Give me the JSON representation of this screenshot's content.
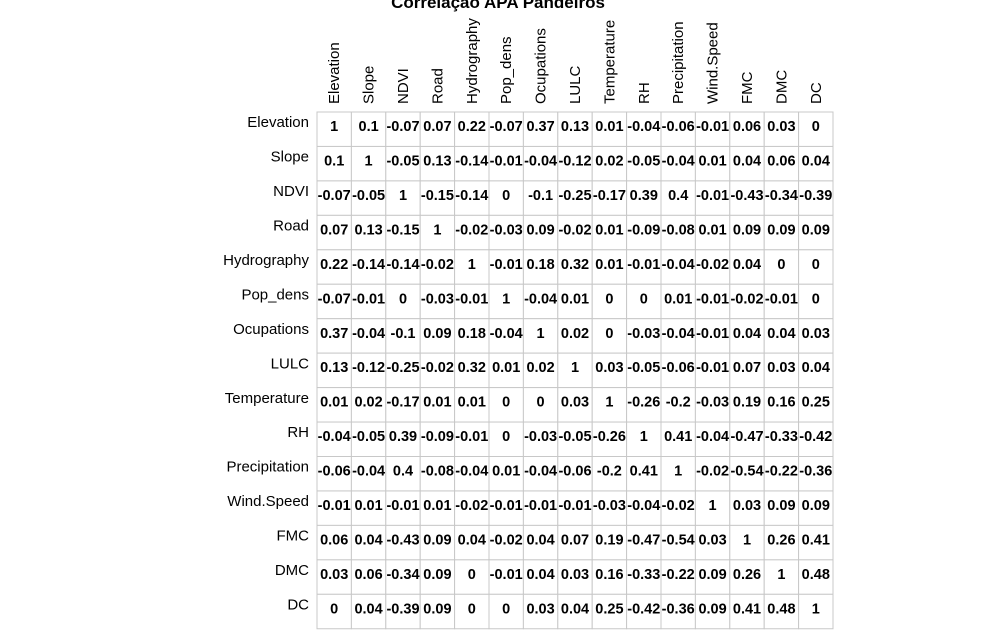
{
  "chart_data": {
    "type": "heatmap",
    "title": "Correlação APA Pandeiros",
    "variables": [
      "Elevation",
      "Slope",
      "NDVI",
      "Road",
      "Hydrography",
      "Pop_dens",
      "Ocupations",
      "LULC",
      "Temperature",
      "RH",
      "Precipitation",
      "Wind.Speed",
      "FMC",
      "DMC",
      "DC"
    ],
    "values": [
      [
        1,
        0.1,
        -0.07,
        0.07,
        0.22,
        -0.07,
        0.37,
        0.13,
        0.01,
        -0.04,
        -0.06,
        -0.01,
        0.06,
        0.03,
        0
      ],
      [
        0.1,
        1,
        -0.05,
        0.13,
        -0.14,
        -0.01,
        -0.04,
        -0.12,
        0.02,
        -0.05,
        -0.04,
        0.01,
        0.04,
        0.06,
        0.04
      ],
      [
        -0.07,
        -0.05,
        1,
        -0.15,
        -0.14,
        0,
        -0.1,
        -0.25,
        -0.17,
        0.39,
        0.4,
        -0.01,
        -0.43,
        -0.34,
        -0.39
      ],
      [
        0.07,
        0.13,
        -0.15,
        1,
        -0.02,
        -0.03,
        0.09,
        -0.02,
        0.01,
        -0.09,
        -0.08,
        0.01,
        0.09,
        0.09,
        0.09
      ],
      [
        0.22,
        -0.14,
        -0.14,
        -0.02,
        1,
        -0.01,
        0.18,
        0.32,
        0.01,
        -0.01,
        -0.04,
        -0.02,
        0.04,
        0,
        0
      ],
      [
        -0.07,
        -0.01,
        0,
        -0.03,
        -0.01,
        1,
        -0.04,
        0.01,
        0,
        0,
        0.01,
        -0.01,
        -0.02,
        -0.01,
        0
      ],
      [
        0.37,
        -0.04,
        -0.1,
        0.09,
        0.18,
        -0.04,
        1,
        0.02,
        0,
        -0.03,
        -0.04,
        -0.01,
        0.04,
        0.04,
        0.03
      ],
      [
        0.13,
        -0.12,
        -0.25,
        -0.02,
        0.32,
        0.01,
        0.02,
        1,
        0.03,
        -0.05,
        -0.06,
        -0.01,
        0.07,
        0.03,
        0.04
      ],
      [
        0.01,
        0.02,
        -0.17,
        0.01,
        0.01,
        0,
        0,
        0.03,
        1,
        -0.26,
        -0.2,
        -0.03,
        0.19,
        0.16,
        0.25
      ],
      [
        -0.04,
        -0.05,
        0.39,
        -0.09,
        -0.01,
        0,
        -0.03,
        -0.05,
        -0.26,
        1,
        0.41,
        -0.04,
        -0.47,
        -0.33,
        -0.42
      ],
      [
        -0.06,
        -0.04,
        0.4,
        -0.08,
        -0.04,
        0.01,
        -0.04,
        -0.06,
        -0.2,
        0.41,
        1,
        -0.02,
        -0.54,
        -0.22,
        -0.36
      ],
      [
        -0.01,
        0.01,
        -0.01,
        0.01,
        -0.02,
        -0.01,
        -0.01,
        -0.01,
        -0.03,
        -0.04,
        -0.02,
        1,
        0.03,
        0.09,
        0.09
      ],
      [
        0.06,
        0.04,
        -0.43,
        0.09,
        0.04,
        -0.02,
        0.04,
        0.07,
        0.19,
        -0.47,
        -0.54,
        0.03,
        1,
        0.26,
        0.41
      ],
      [
        0.03,
        0.06,
        -0.34,
        0.09,
        0,
        -0.01,
        0.04,
        0.03,
        0.16,
        -0.33,
        -0.22,
        0.09,
        0.26,
        1,
        0.48
      ],
      [
        0,
        0.04,
        -0.39,
        0.09,
        0,
        0,
        0.03,
        0.04,
        0.25,
        -0.42,
        -0.36,
        0.09,
        0.41,
        0.48,
        1
      ]
    ]
  }
}
